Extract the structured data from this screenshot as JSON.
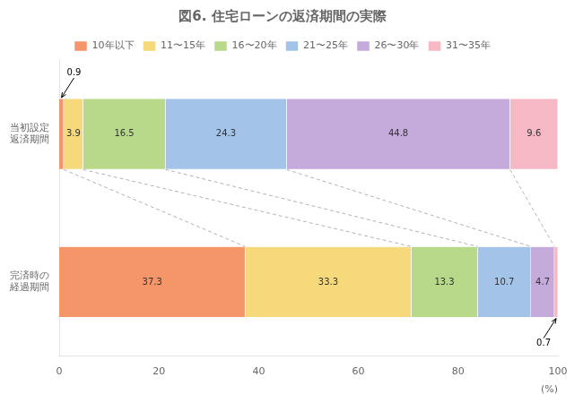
{
  "chart_data": {
    "type": "bar",
    "orientation": "horizontal",
    "stacked": true,
    "title": "図6. 住宅ローンの返済期間の実際",
    "categories": [
      "当初設定\n返済期間",
      "完済時の\n経過期間"
    ],
    "series": [
      {
        "name": "10年以下",
        "color": "#F4956A",
        "values": [
          0.9,
          37.3
        ]
      },
      {
        "name": "11〜15年",
        "color": "#F5D97A",
        "values": [
          3.9,
          33.3
        ]
      },
      {
        "name": "16〜20年",
        "color": "#B8D98A",
        "values": [
          16.5,
          13.3
        ]
      },
      {
        "name": "21〜25年",
        "color": "#A3C4E8",
        "values": [
          24.3,
          10.7
        ]
      },
      {
        "name": "26〜30年",
        "color": "#C5AADC",
        "values": [
          44.8,
          4.7
        ]
      },
      {
        "name": "31〜35年",
        "color": "#F5B8C4",
        "values": [
          9.6,
          0.7
        ]
      }
    ],
    "xlabel": "(%)",
    "xlim": [
      0,
      100
    ],
    "xticks": [
      0,
      20,
      40,
      60,
      80,
      100
    ],
    "data_labels": true,
    "grid": false,
    "legend": "top"
  }
}
